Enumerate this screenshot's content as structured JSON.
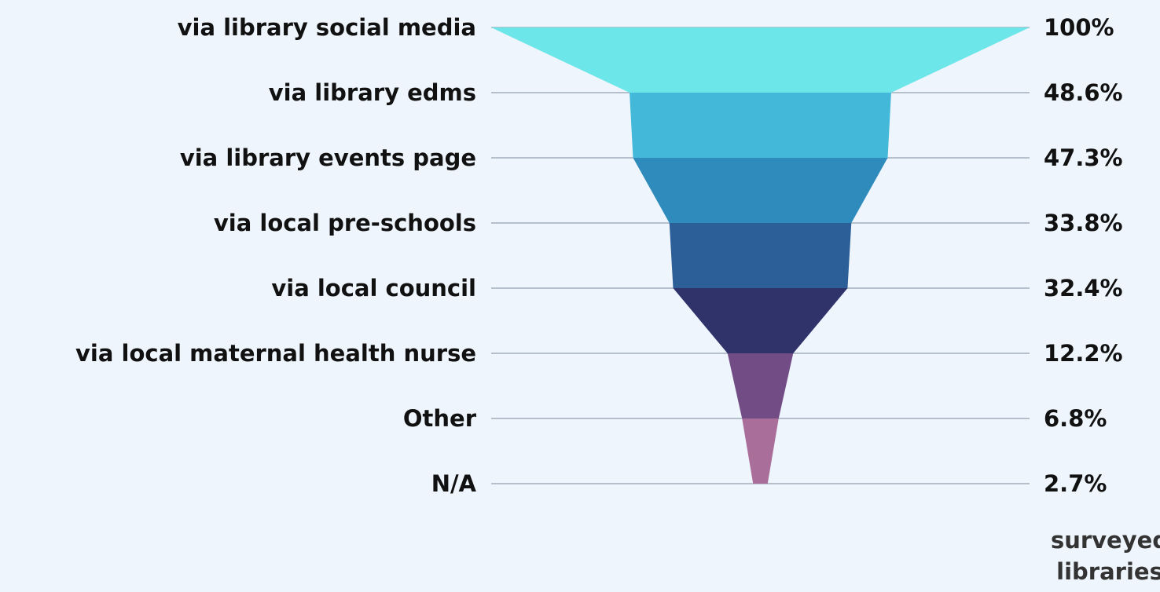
{
  "chart_data": {
    "type": "funnel",
    "categories": [
      "via library social media",
      "via library edms",
      "via library events page",
      "via local pre-schools",
      "via local council",
      "via local maternal health nurse",
      "Other",
      "N/A"
    ],
    "values": [
      100,
      48.6,
      47.3,
      33.8,
      32.4,
      12.2,
      6.8,
      2.7
    ],
    "value_labels": [
      "100%",
      "48.6%",
      "47.3%",
      "33.8%",
      "32.4%",
      "12.2%",
      "6.8%",
      "2.7%"
    ],
    "colors": [
      "#6de6ea",
      "#43b8d8",
      "#2e8bbb",
      "#2c5f97",
      "#30336a",
      "#714c85",
      "#aa6e9a"
    ],
    "value_label": "surveyed libraries"
  }
}
